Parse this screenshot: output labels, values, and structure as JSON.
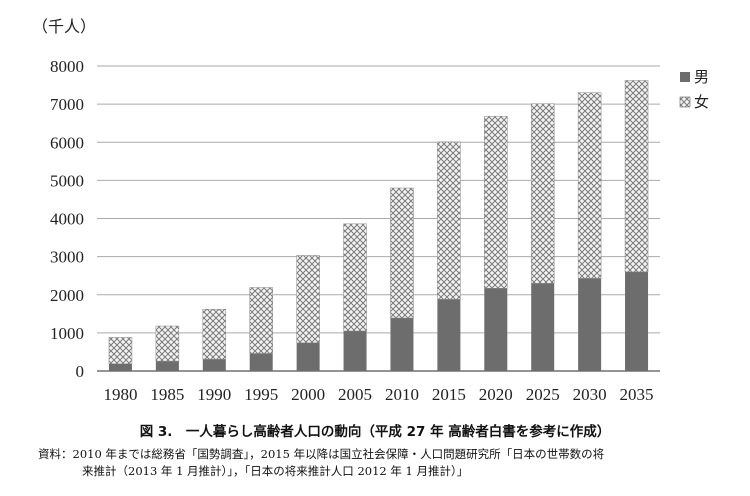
{
  "chart_data": {
    "type": "bar",
    "stacked": true,
    "unit_label": "（千人）",
    "categories": [
      "1980",
      "1985",
      "1990",
      "1995",
      "2000",
      "2005",
      "2010",
      "2015",
      "2020",
      "2025",
      "2030",
      "2035"
    ],
    "series": [
      {
        "name": "男",
        "values": [
          190,
          260,
          310,
          460,
          740,
          1050,
          1390,
          1880,
          2170,
          2300,
          2430,
          2600
        ]
      },
      {
        "name": "女",
        "values": [
          690,
          920,
          1310,
          1730,
          2290,
          2810,
          3410,
          4130,
          4510,
          4710,
          4870,
          5020
        ]
      }
    ],
    "ylim": [
      0,
      8000
    ],
    "yticks": [
      0,
      1000,
      2000,
      3000,
      4000,
      5000,
      6000,
      7000,
      8000
    ],
    "ytick_labels": [
      "0",
      "1000",
      "2000",
      "3000",
      "4000",
      "5000",
      "6000",
      "7000",
      "8000"
    ],
    "grid": true,
    "legend_position": "right",
    "colors": {
      "male": "#6d6d6d",
      "female_pattern": "#8a8a8a",
      "grid": "#aaaaaa",
      "axis": "#555555"
    }
  },
  "caption": "図 3.　一人暮らし高齢者人口の動向（平成 27 年 高齢者白書を参考に作成）",
  "source": {
    "line1": "資料：2010 年までは総務省「国勢調査」，2015 年以降は国立社会保障・人口問題研究所「日本の世帯数の将",
    "line2": "来推計（2013 年 1 月推計）」，「日本の将来推計人口 2012 年 1 月推計）」"
  }
}
